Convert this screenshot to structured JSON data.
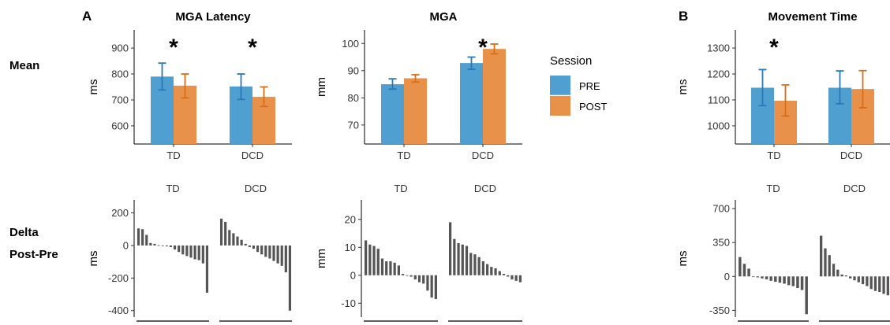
{
  "figure": {
    "panel_labels": [
      "A",
      "B"
    ],
    "row_labels": {
      "mean": "Mean",
      "delta_line1": "Delta",
      "delta_line2": "Post-Pre"
    }
  },
  "legend": {
    "title": "Session",
    "items": [
      {
        "label": "PRE",
        "color": "#4f9fd0"
      },
      {
        "label": "POST",
        "color": "#e8914a"
      }
    ]
  },
  "colors": {
    "pre": "#4f9fd0",
    "post": "#e8914a",
    "pre_err": "#2a78b8",
    "post_err": "#d86e1a",
    "delta_bar": "#555555"
  },
  "chart_data": [
    {
      "id": "latency_mean",
      "type": "bar",
      "title": "MGA Latency",
      "xlabel": "",
      "ylabel": "ms",
      "ylim": [
        530,
        970
      ],
      "yticks": [
        600,
        700,
        800,
        900
      ],
      "categories": [
        "TD",
        "DCD"
      ],
      "series": [
        {
          "name": "PRE",
          "values": [
            790,
            752
          ],
          "err_low": [
            738,
            702
          ],
          "err_high": [
            842,
            800
          ]
        },
        {
          "name": "POST",
          "values": [
            755,
            712
          ],
          "err_low": [
            708,
            675
          ],
          "err_high": [
            800,
            750
          ]
        }
      ],
      "significance": [
        "*",
        "*"
      ]
    },
    {
      "id": "mga_mean",
      "type": "bar",
      "title": "MGA",
      "xlabel": "",
      "ylabel": "mm",
      "ylim": [
        63,
        105
      ],
      "yticks": [
        70,
        80,
        90,
        100
      ],
      "categories": [
        "TD",
        "DCD"
      ],
      "series": [
        {
          "name": "PRE",
          "values": [
            85,
            92.8
          ],
          "err_low": [
            83.2,
            90.5
          ],
          "err_high": [
            87,
            95
          ]
        },
        {
          "name": "POST",
          "values": [
            87.2,
            98
          ],
          "err_low": [
            85.8,
            96.2
          ],
          "err_high": [
            88.5,
            99.8
          ]
        }
      ],
      "significance": [
        "",
        "*"
      ]
    },
    {
      "id": "mt_mean",
      "type": "bar",
      "title": "Movement Time",
      "xlabel": "",
      "ylabel": "ms",
      "ylim": [
        930,
        1370
      ],
      "yticks": [
        1000,
        1100,
        1200,
        1300
      ],
      "categories": [
        "TD",
        "DCD"
      ],
      "series": [
        {
          "name": "PRE",
          "values": [
            1147,
            1147
          ],
          "err_low": [
            1078,
            1085
          ],
          "err_high": [
            1217,
            1212
          ]
        },
        {
          "name": "POST",
          "values": [
            1097,
            1142
          ],
          "err_low": [
            1038,
            1070
          ],
          "err_high": [
            1158,
            1213
          ]
        }
      ],
      "significance": [
        "*",
        ""
      ]
    },
    {
      "id": "latency_delta",
      "type": "bar",
      "xlabel": "",
      "ylabel": "ms",
      "ylim": [
        -440,
        280
      ],
      "yticks": [
        -400,
        -200,
        0,
        200
      ],
      "facets": [
        {
          "label": "TD",
          "values": [
            105,
            100,
            65,
            15,
            10,
            2,
            0,
            -5,
            -10,
            -25,
            -40,
            -55,
            -65,
            -75,
            -85,
            -90,
            -110,
            -290
          ]
        },
        {
          "label": "DCD",
          "values": [
            165,
            145,
            95,
            75,
            55,
            35,
            10,
            -10,
            -20,
            -40,
            -55,
            -70,
            -80,
            -95,
            -110,
            -125,
            -165,
            -400
          ]
        }
      ]
    },
    {
      "id": "mga_delta",
      "type": "bar",
      "xlabel": "",
      "ylabel": "mm",
      "ylim": [
        -15,
        27
      ],
      "yticks": [
        -10,
        0,
        10,
        20
      ],
      "facets": [
        {
          "label": "TD",
          "values": [
            12.5,
            11,
            10.5,
            9.5,
            6,
            5,
            5,
            4.5,
            3.5,
            0.5,
            0,
            -0.5,
            -1.5,
            -2.5,
            -3,
            -5.5,
            -8,
            -8.5
          ]
        },
        {
          "label": "DCD",
          "values": [
            19,
            13,
            11.5,
            11,
            10.5,
            8,
            7.5,
            6.5,
            5,
            4,
            3,
            2.5,
            1.5,
            0.5,
            -0.5,
            -1.5,
            -2,
            -2.5
          ]
        }
      ]
    },
    {
      "id": "mt_delta",
      "type": "bar",
      "xlabel": "",
      "ylabel": "ms",
      "ylim": [
        -420,
        790
      ],
      "yticks": [
        -350,
        0,
        350,
        700
      ],
      "facets": [
        {
          "label": "TD",
          "values": [
            200,
            130,
            80,
            0,
            -10,
            -20,
            -30,
            -45,
            -55,
            -65,
            -75,
            -90,
            -100,
            -120,
            -140,
            -390
          ]
        },
        {
          "label": "DCD",
          "values": [
            420,
            290,
            220,
            130,
            70,
            20,
            10,
            -20,
            -40,
            -60,
            -80,
            -100,
            -130,
            -150,
            -160,
            -180,
            -195
          ]
        }
      ]
    }
  ]
}
